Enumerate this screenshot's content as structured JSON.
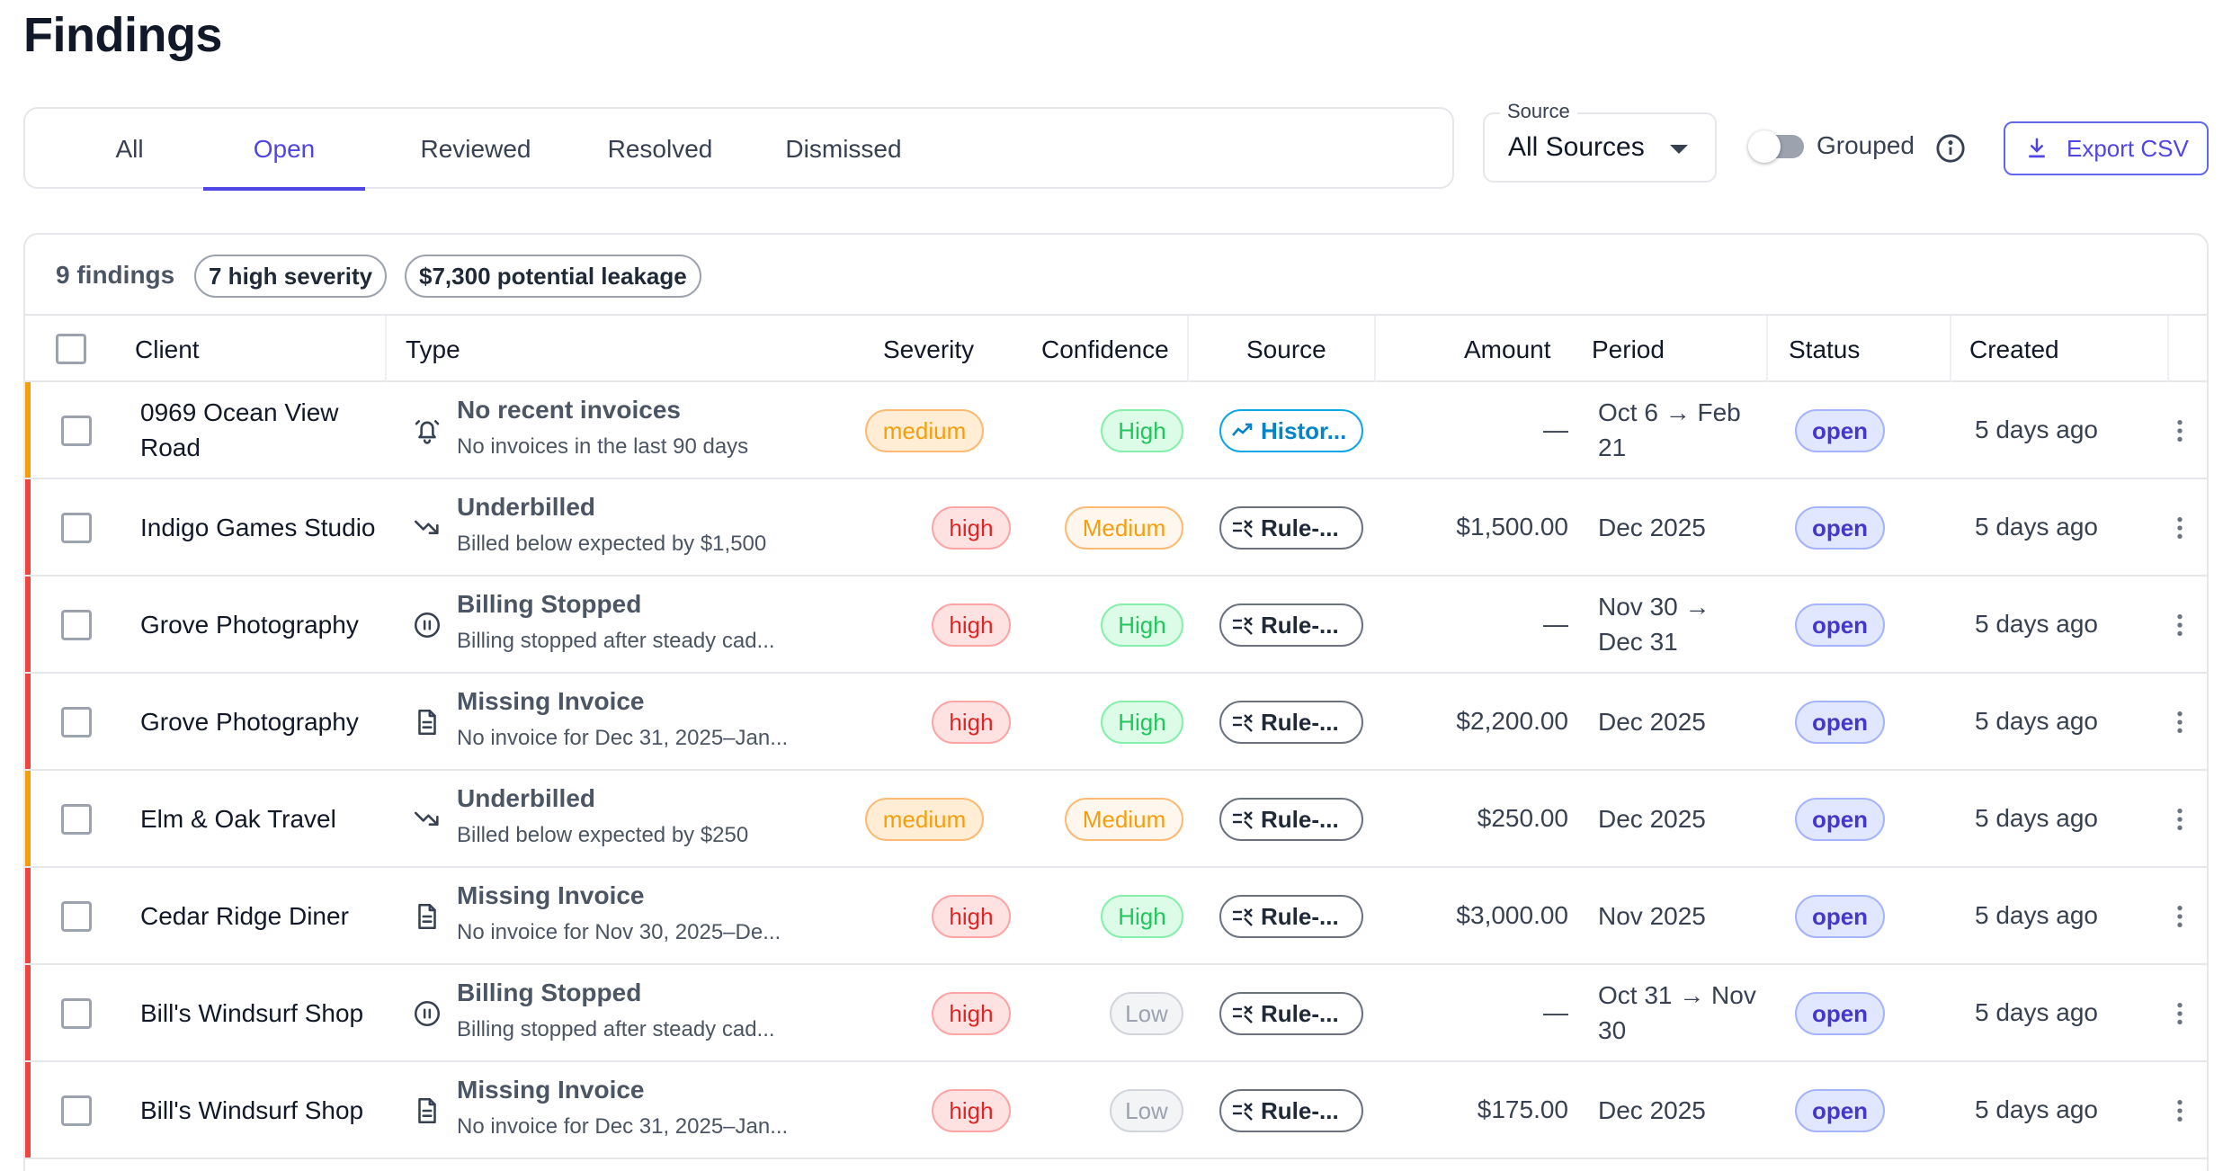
{
  "page": {
    "title": "Findings"
  },
  "tabs": [
    {
      "label": "All",
      "active": false
    },
    {
      "label": "Open",
      "active": true
    },
    {
      "label": "Reviewed",
      "active": false
    },
    {
      "label": "Resolved",
      "active": false
    },
    {
      "label": "Dismissed",
      "active": false
    }
  ],
  "source_filter": {
    "label": "Source",
    "value": "All Sources"
  },
  "grouped": {
    "label": "Grouped",
    "enabled": false
  },
  "export": {
    "label": "Export CSV"
  },
  "summary": {
    "count": "9 findings",
    "high_severity": "7 high severity",
    "leakage": "$7,300 potential leakage"
  },
  "table": {
    "headers": {
      "client": "Client",
      "type": "Type",
      "severity": "Severity",
      "confidence": "Confidence",
      "source": "Source",
      "amount": "Amount",
      "period": "Period",
      "status": "Status",
      "created": "Created"
    },
    "rows": [
      {
        "client": "0969 Ocean View Road",
        "icon": "bell-icon",
        "type": "No recent invoices",
        "detail": "No invoices in the last 90 days",
        "severity": "medium",
        "confidence": "High",
        "source": "Histor...",
        "source_kind": "historical",
        "amount": "—",
        "period": "Oct 6 → Feb 21",
        "status": "open",
        "created": "5 days ago"
      },
      {
        "client": "Indigo Games Studio",
        "icon": "trending-down-icon",
        "type": "Underbilled",
        "detail": "Billed below expected by $1,500",
        "severity": "high",
        "confidence": "Medium",
        "source": "Rule-...",
        "source_kind": "rule",
        "amount": "$1,500.00",
        "period": "Dec 2025",
        "status": "open",
        "created": "5 days ago"
      },
      {
        "client": "Grove Photography",
        "icon": "pause-circle-icon",
        "type": "Billing Stopped",
        "detail": "Billing stopped after steady cad...",
        "severity": "high",
        "confidence": "High",
        "source": "Rule-...",
        "source_kind": "rule",
        "amount": "—",
        "period": "Nov 30 → Dec 31",
        "status": "open",
        "created": "5 days ago"
      },
      {
        "client": "Grove Photography",
        "icon": "document-icon",
        "type": "Missing Invoice",
        "detail": "No invoice for Dec 31, 2025–Jan...",
        "severity": "high",
        "confidence": "High",
        "source": "Rule-...",
        "source_kind": "rule",
        "amount": "$2,200.00",
        "period": "Dec 2025",
        "status": "open",
        "created": "5 days ago"
      },
      {
        "client": "Elm & Oak Travel",
        "icon": "trending-down-icon",
        "type": "Underbilled",
        "detail": "Billed below expected by $250",
        "severity": "medium",
        "confidence": "Medium",
        "source": "Rule-...",
        "source_kind": "rule",
        "amount": "$250.00",
        "period": "Dec 2025",
        "status": "open",
        "created": "5 days ago"
      },
      {
        "client": "Cedar Ridge Diner",
        "icon": "document-icon",
        "type": "Missing Invoice",
        "detail": "No invoice for Nov 30, 2025–De...",
        "severity": "high",
        "confidence": "High",
        "source": "Rule-...",
        "source_kind": "rule",
        "amount": "$3,000.00",
        "period": "Nov 2025",
        "status": "open",
        "created": "5 days ago"
      },
      {
        "client": "Bill's Windsurf Shop",
        "icon": "pause-circle-icon",
        "type": "Billing Stopped",
        "detail": "Billing stopped after steady cad...",
        "severity": "high",
        "confidence": "Low",
        "source": "Rule-...",
        "source_kind": "rule",
        "amount": "—",
        "period": "Oct 31 → Nov 30",
        "status": "open",
        "created": "5 days ago"
      },
      {
        "client": "Bill's Windsurf Shop",
        "icon": "document-icon",
        "type": "Missing Invoice",
        "detail": "No invoice for Dec 31, 2025–Jan...",
        "severity": "high",
        "confidence": "Low",
        "source": "Rule-...",
        "source_kind": "rule",
        "amount": "$175.00",
        "period": "Dec 2025",
        "status": "open",
        "created": "5 days ago"
      }
    ]
  },
  "colors": {
    "accent": "#4f46e5",
    "severity_high_bar": "#ef4444",
    "severity_medium_bar": "#f59e0b"
  }
}
